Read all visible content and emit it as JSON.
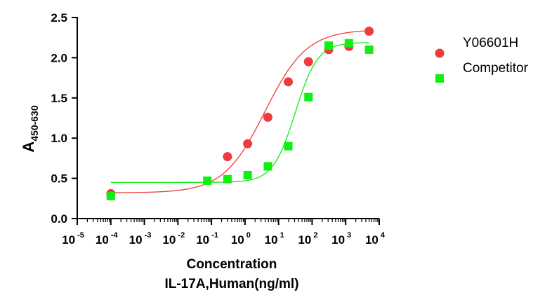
{
  "chart_data": {
    "type": "scatter",
    "xscale": "log",
    "xlim_exp": [
      -5,
      4
    ],
    "ylim": [
      0.0,
      2.5
    ],
    "y_ticks": [
      "0.0",
      "0.5",
      "1.0",
      "1.5",
      "2.0",
      "2.5"
    ],
    "x_ticks": [
      {
        "base": "10",
        "exp": "-5"
      },
      {
        "base": "10",
        "exp": "-4"
      },
      {
        "base": "10",
        "exp": "-3"
      },
      {
        "base": "10",
        "exp": "-2"
      },
      {
        "base": "10",
        "exp": "-1"
      },
      {
        "base": "10",
        "exp": "0"
      },
      {
        "base": "10",
        "exp": "1"
      },
      {
        "base": "10",
        "exp": "2"
      },
      {
        "base": "10",
        "exp": "3"
      },
      {
        "base": "10",
        "exp": "4"
      }
    ],
    "xlabel_line1": "Concentration",
    "xlabel_line2": "IL-17A,Human(ng/ml)",
    "ylabel_main": "A",
    "ylabel_sub": "450-630",
    "legend_position": "right",
    "series": [
      {
        "name": "Y06601H",
        "marker": "circle",
        "color": "#ee3c3c",
        "x": [
          0.0001,
          0.3,
          1.2,
          4.8,
          19.5,
          78,
          312,
          1250,
          5000
        ],
        "y": [
          0.31,
          0.77,
          0.93,
          1.26,
          1.7,
          1.95,
          2.1,
          2.14,
          2.33
        ],
        "fit": {
          "bottom": 0.32,
          "top": 2.35,
          "logEC50": 0.6,
          "hill": 0.7
        }
      },
      {
        "name": "Competitor",
        "marker": "square",
        "color": "#11ee11",
        "x": [
          0.0001,
          0.075,
          0.3,
          1.2,
          4.8,
          19.5,
          78,
          312,
          1250,
          5000
        ],
        "y": [
          0.28,
          0.47,
          0.49,
          0.54,
          0.65,
          0.9,
          1.51,
          2.15,
          2.18,
          2.1
        ],
        "fit": {
          "bottom": 0.45,
          "top": 2.19,
          "logEC50": 1.5,
          "hill": 1.3
        }
      }
    ]
  }
}
